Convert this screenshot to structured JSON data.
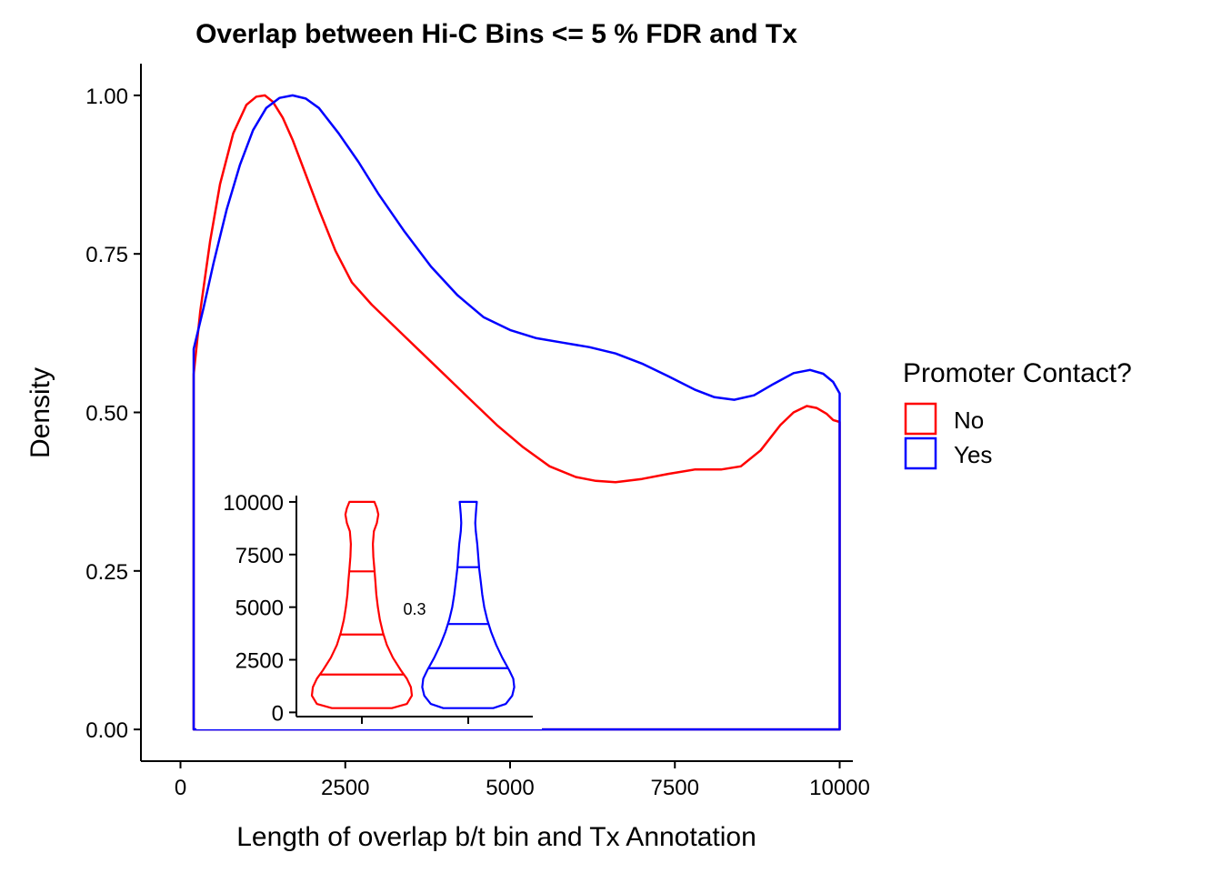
{
  "chart_data": [
    {
      "type": "density",
      "title": "Overlap between Hi-C Bins <= 5 % FDR and Tx",
      "xlabel": "Length of overlap b/t bin and Tx Annotation",
      "ylabel": "Density",
      "xlim": [
        -600,
        10200
      ],
      "ylim": [
        -0.05,
        1.05
      ],
      "x_ticks": [
        0,
        2500,
        5000,
        7500,
        10000
      ],
      "x_tick_labels": [
        "0",
        "2500",
        "5000",
        "7500",
        "10000"
      ],
      "y_ticks": [
        0,
        0.25,
        0.5,
        0.75,
        1.0
      ],
      "y_tick_labels": [
        "0.00",
        "0.25",
        "0.50",
        "0.75",
        "1.00"
      ],
      "grid": false,
      "legend": {
        "title": "Promoter Contact?",
        "position": "right",
        "entries": [
          {
            "label": "No",
            "color": "#ff0000"
          },
          {
            "label": "Yes",
            "color": "#0000ff"
          }
        ]
      },
      "series": [
        {
          "name": "No",
          "color": "#ff0000",
          "x": [
            200,
            300,
            450,
            600,
            800,
            1000,
            1150,
            1280,
            1400,
            1550,
            1700,
            1900,
            2100,
            2350,
            2600,
            2900,
            3200,
            3600,
            4000,
            4400,
            4800,
            5200,
            5600,
            6000,
            6300,
            6600,
            7000,
            7400,
            7800,
            8200,
            8500,
            8800,
            9100,
            9300,
            9500,
            9650,
            9800,
            9900,
            10000
          ],
          "y": [
            0.56,
            0.66,
            0.77,
            0.86,
            0.94,
            0.985,
            0.998,
            1.0,
            0.99,
            0.965,
            0.93,
            0.875,
            0.82,
            0.755,
            0.705,
            0.67,
            0.64,
            0.6,
            0.56,
            0.52,
            0.48,
            0.445,
            0.415,
            0.398,
            0.392,
            0.39,
            0.395,
            0.403,
            0.41,
            0.41,
            0.415,
            0.44,
            0.48,
            0.5,
            0.51,
            0.507,
            0.498,
            0.488,
            0.485
          ]
        },
        {
          "name": "Yes",
          "color": "#0000ff",
          "x": [
            200,
            350,
            500,
            700,
            900,
            1100,
            1300,
            1500,
            1700,
            1900,
            2100,
            2400,
            2700,
            3000,
            3400,
            3800,
            4200,
            4600,
            5000,
            5400,
            5800,
            6200,
            6600,
            7000,
            7400,
            7800,
            8100,
            8400,
            8700,
            9000,
            9300,
            9550,
            9750,
            9900,
            10000
          ],
          "y": [
            0.6,
            0.665,
            0.735,
            0.82,
            0.89,
            0.945,
            0.98,
            0.996,
            1.0,
            0.995,
            0.98,
            0.94,
            0.895,
            0.845,
            0.785,
            0.73,
            0.685,
            0.65,
            0.63,
            0.617,
            0.61,
            0.603,
            0.593,
            0.577,
            0.557,
            0.536,
            0.524,
            0.52,
            0.527,
            0.545,
            0.562,
            0.567,
            0.561,
            0.548,
            0.53
          ]
        }
      ]
    },
    {
      "type": "violin",
      "ylim": [
        -200,
        10300
      ],
      "y_ticks": [
        0,
        2500,
        5000,
        7500,
        10000
      ],
      "y_tick_labels": [
        "0",
        "2500",
        "5000",
        "7500",
        "10000"
      ],
      "annotation": "0.3",
      "series": [
        {
          "name": "No",
          "color": "#ff0000",
          "quantiles": [
            1800,
            3700,
            6700
          ],
          "profile_y": [
            200,
            400,
            800,
            1200,
            1600,
            2000,
            2600,
            3200,
            3800,
            4400,
            5000,
            5600,
            6200,
            6800,
            7400,
            8000,
            8600,
            9000,
            9400,
            9700,
            10000
          ],
          "profile_w": [
            0.6,
            0.9,
            1.0,
            0.98,
            0.9,
            0.78,
            0.62,
            0.5,
            0.42,
            0.36,
            0.32,
            0.29,
            0.27,
            0.25,
            0.23,
            0.22,
            0.24,
            0.3,
            0.33,
            0.3,
            0.25
          ]
        },
        {
          "name": "Yes",
          "color": "#0000ff",
          "quantiles": [
            2100,
            4200,
            6900
          ],
          "profile_y": [
            200,
            400,
            800,
            1200,
            1600,
            2000,
            2600,
            3200,
            3800,
            4400,
            5000,
            5600,
            6200,
            6800,
            7400,
            8000,
            8600,
            9000,
            9400,
            9700,
            10000
          ],
          "profile_w": [
            0.5,
            0.75,
            0.88,
            0.92,
            0.9,
            0.82,
            0.68,
            0.56,
            0.46,
            0.38,
            0.32,
            0.28,
            0.25,
            0.22,
            0.2,
            0.18,
            0.15,
            0.14,
            0.15,
            0.16,
            0.17
          ]
        }
      ]
    }
  ]
}
